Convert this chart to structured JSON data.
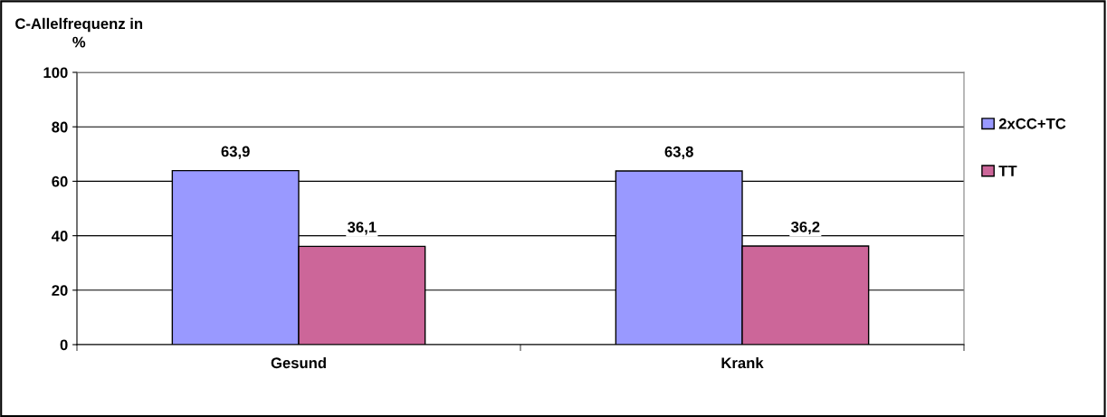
{
  "chart_data": {
    "type": "bar",
    "ylabel": "C-Allelfrequenz in\n%",
    "categories": [
      "Gesund",
      "Krank"
    ],
    "series": [
      {
        "name": "2xCC+TC",
        "color": "#9999ff",
        "values": [
          63.9,
          63.8
        ],
        "value_labels": [
          "63,9",
          "63,8"
        ]
      },
      {
        "name": "TT",
        "color": "#cc6699",
        "values": [
          36.1,
          36.2
        ],
        "value_labels": [
          "36,1",
          "36,2"
        ]
      }
    ],
    "ylim": [
      0,
      100
    ],
    "yticks": [
      0,
      20,
      40,
      60,
      80,
      100
    ],
    "grid": "y",
    "legend": "right"
  }
}
